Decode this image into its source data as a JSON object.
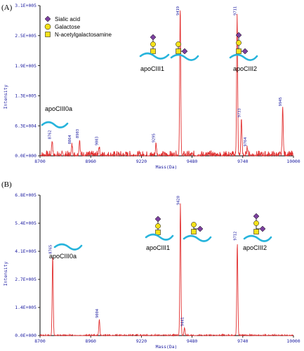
{
  "chart_data": [
    {
      "type": "line",
      "panel_label": "(A)",
      "xlabel": "Mass(Da)",
      "ylabel": "Intensity",
      "xlim": [
        8700,
        10000
      ],
      "ylim": [
        0,
        310000
      ],
      "x_ticks": [
        "8700",
        "8960",
        "9220",
        "9480",
        "9740",
        "10000"
      ],
      "y_ticks": [
        "0.0E+000",
        "6.3E+004",
        "1.3E+005",
        "1.9E+005",
        "2.5E+005",
        "3.1E+005"
      ],
      "peaks": [
        {
          "label": "8762",
          "x": 8762,
          "y": 30000
        },
        {
          "label": "8864",
          "x": 8864,
          "y": 20000
        },
        {
          "label": "8903",
          "x": 8903,
          "y": 32000
        },
        {
          "label": "9003",
          "x": 9003,
          "y": 17000
        },
        {
          "label": "9295",
          "x": 9295,
          "y": 23000
        },
        {
          "label": "9419",
          "x": 9419,
          "y": 302000
        },
        {
          "label": "9711",
          "x": 9711,
          "y": 290000
        },
        {
          "label": "9733",
          "x": 9733,
          "y": 75000
        },
        {
          "label": "9764",
          "x": 9764,
          "y": 15000
        },
        {
          "label": "9945",
          "x": 9945,
          "y": 98000
        }
      ],
      "legend": {
        "placement": "top-left",
        "entries": [
          {
            "label": "Sialic acid",
            "symbol": "purple-diamond",
            "color": "#7b3f9e"
          },
          {
            "label": "Galactose",
            "symbol": "yellow-circle",
            "color": "#f5e21a"
          },
          {
            "label": "N-acetylgalactosamine",
            "symbol": "yellow-square",
            "color": "#f5e21a"
          }
        ]
      },
      "annotations": [
        "apoCIII0a",
        "apoCIII1",
        "apoCIII2"
      ]
    },
    {
      "type": "line",
      "panel_label": "(B)",
      "xlabel": "Mass(Da)",
      "ylabel": "Intensity",
      "xlim": [
        8700,
        10000
      ],
      "ylim": [
        0,
        680000
      ],
      "x_ticks": [
        "8700",
        "8960",
        "9220",
        "9480",
        "9740",
        "10000"
      ],
      "y_ticks": [
        "0.0E+000",
        "1.4E+005",
        "2.7E+005",
        "4.1E+005",
        "5.4E+005",
        "6.8E+005"
      ],
      "peaks": [
        {
          "label": "8765",
          "x": 8765,
          "y": 385000
        },
        {
          "label": "9004",
          "x": 9004,
          "y": 75000
        },
        {
          "label": "9420",
          "x": 9420,
          "y": 640000
        },
        {
          "label": "9441",
          "x": 9441,
          "y": 35000
        },
        {
          "label": "9712",
          "x": 9712,
          "y": 450000
        }
      ],
      "annotations": [
        "apoCIII0a",
        "apoCIII1",
        "apoCIII2"
      ]
    }
  ],
  "colors": {
    "trace": "#e23030",
    "protein_chain": "#27b4dc",
    "axis_text": "#1a1aa0"
  }
}
